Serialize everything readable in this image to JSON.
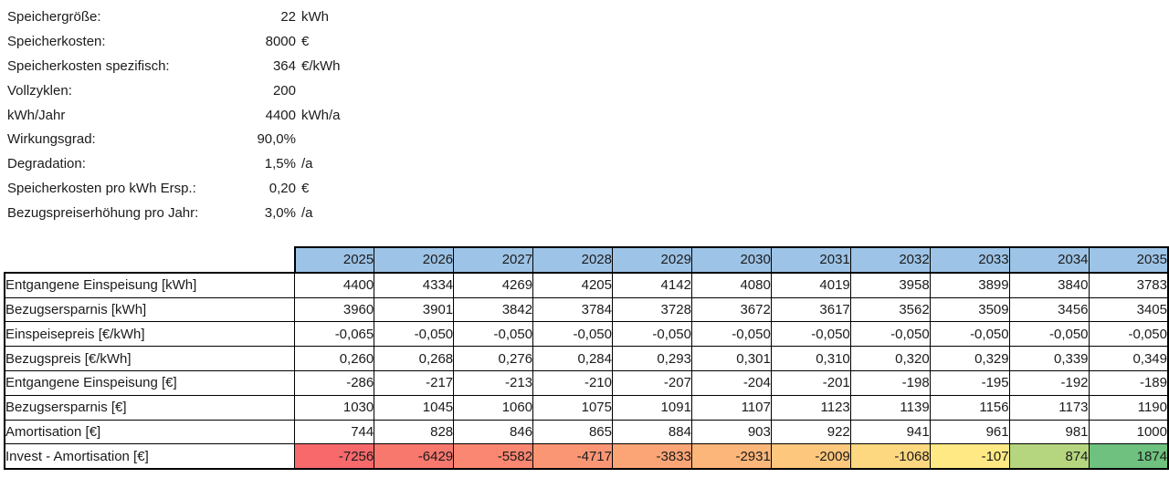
{
  "page": {
    "background": "#ffffff",
    "text_color": "#1b1b1b",
    "grid_border_color": "#000000"
  },
  "parameters": [
    {
      "label": "Speichergröße:",
      "value": "22",
      "unit": "kWh"
    },
    {
      "label": "Speicherkosten:",
      "value": "8000",
      "unit": "€"
    },
    {
      "label": "Speicherkosten spezifisch:",
      "value": "364",
      "unit": "€/kWh"
    },
    {
      "label": "Vollzyklen:",
      "value": "200",
      "unit": ""
    },
    {
      "label": "kWh/Jahr",
      "value": "4400",
      "unit": "kWh/a"
    },
    {
      "label": "Wirkungsgrad:",
      "value": "90,0%",
      "unit": ""
    },
    {
      "label": "Degradation:",
      "value": "1,5%",
      "unit": "/a"
    },
    {
      "label": "Speicherkosten pro kWh Ersp.:",
      "value": "0,20",
      "unit": "€"
    },
    {
      "label": "Bezugspreiserhöhung pro Jahr:",
      "value": "3,0%",
      "unit": "/a"
    }
  ],
  "table": {
    "header_fill": "#9DC3E6",
    "years": [
      "2025",
      "2026",
      "2027",
      "2028",
      "2029",
      "2030",
      "2031",
      "2032",
      "2033",
      "2034",
      "2035"
    ],
    "rows": [
      {
        "label": "Entgangene Einspeisung [kWh]",
        "values": [
          "4400",
          "4334",
          "4269",
          "4205",
          "4142",
          "4080",
          "4019",
          "3958",
          "3899",
          "3840",
          "3783"
        ]
      },
      {
        "label": "Bezugsersparnis [kWh]",
        "values": [
          "3960",
          "3901",
          "3842",
          "3784",
          "3728",
          "3672",
          "3617",
          "3562",
          "3509",
          "3456",
          "3405"
        ]
      },
      {
        "label": "Einspeisepreis [€/kWh]",
        "values": [
          "-0,065",
          "-0,050",
          "-0,050",
          "-0,050",
          "-0,050",
          "-0,050",
          "-0,050",
          "-0,050",
          "-0,050",
          "-0,050",
          "-0,050"
        ]
      },
      {
        "label": "Bezugspreis [€/kWh]",
        "values": [
          "0,260",
          "0,268",
          "0,276",
          "0,284",
          "0,293",
          "0,301",
          "0,310",
          "0,320",
          "0,329",
          "0,339",
          "0,349"
        ]
      },
      {
        "label": "Entgangene Einspeisung [€]",
        "values": [
          "-286",
          "-217",
          "-213",
          "-210",
          "-207",
          "-204",
          "-201",
          "-198",
          "-195",
          "-192",
          "-189"
        ]
      },
      {
        "label": "Bezugsersparnis [€]",
        "values": [
          "1030",
          "1045",
          "1060",
          "1075",
          "1091",
          "1107",
          "1123",
          "1139",
          "1156",
          "1173",
          "1190"
        ]
      },
      {
        "label": "Amortisation [€]",
        "values": [
          "744",
          "828",
          "846",
          "865",
          "884",
          "903",
          "922",
          "941",
          "961",
          "981",
          "1000"
        ]
      },
      {
        "label": "Invest - Amortisation [€]",
        "values": [
          "-7256",
          "-6429",
          "-5582",
          "-4717",
          "-3833",
          "-2931",
          "-2009",
          "-1068",
          "-107",
          "874",
          "1874"
        ],
        "cell_colors": [
          "#F8696B",
          "#F9786E",
          "#FA8771",
          "#FB9674",
          "#FBA577",
          "#FCB67A",
          "#FDC77D",
          "#FED880",
          "#FEE984",
          "#B5D67F",
          "#6EC17E"
        ]
      }
    ]
  }
}
